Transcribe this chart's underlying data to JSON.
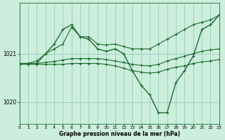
{
  "xlabel": "Graphe pression niveau de la mer (hPa)",
  "background_color": "#cceedd",
  "grid_color": "#99ccbb",
  "line_color": "#1a6b2a",
  "xlim": [
    0,
    23
  ],
  "ylim": [
    1019.55,
    1022.05
  ],
  "yticks": [
    1020,
    1021
  ],
  "xticks": [
    0,
    1,
    2,
    3,
    4,
    5,
    6,
    7,
    8,
    9,
    10,
    11,
    12,
    13,
    14,
    15,
    16,
    17,
    18,
    19,
    20,
    21,
    22,
    23
  ],
  "line_main_x": [
    0,
    1,
    2,
    3,
    4,
    5,
    6,
    7,
    8,
    9,
    10,
    11,
    12,
    13,
    14,
    15,
    16,
    17,
    18,
    19,
    20,
    21,
    22,
    23
  ],
  "line_main_y": [
    1020.8,
    1020.8,
    1020.8,
    1021.0,
    1021.2,
    1021.5,
    1021.6,
    1021.35,
    1021.3,
    1021.1,
    1021.05,
    1021.1,
    1021.0,
    1020.65,
    1020.35,
    1020.15,
    1019.78,
    1019.78,
    1020.4,
    1020.65,
    1020.95,
    1021.5,
    1021.6,
    1021.8
  ],
  "line_top_x": [
    0,
    1,
    2,
    3,
    4,
    5,
    6,
    7,
    8,
    9,
    10,
    11,
    12,
    13,
    14,
    15,
    16,
    17,
    18,
    19,
    20,
    21,
    22,
    23
  ],
  "line_top_y": [
    1020.8,
    1020.8,
    1020.85,
    1021.0,
    1021.1,
    1021.2,
    1021.55,
    1021.35,
    1021.35,
    1021.2,
    1021.18,
    1021.2,
    1021.15,
    1021.1,
    1021.1,
    1021.1,
    1021.2,
    1021.3,
    1021.4,
    1021.5,
    1021.6,
    1021.65,
    1021.7,
    1021.8
  ],
  "line_mid_x": [
    0,
    1,
    2,
    3,
    4,
    5,
    6,
    7,
    8,
    9,
    10,
    11,
    12,
    13,
    14,
    15,
    16,
    17,
    18,
    19,
    20,
    21,
    22,
    23
  ],
  "line_mid_y": [
    1020.8,
    1020.8,
    1020.8,
    1020.82,
    1020.84,
    1020.87,
    1020.9,
    1020.9,
    1020.9,
    1020.9,
    1020.88,
    1020.85,
    1020.82,
    1020.78,
    1020.76,
    1020.75,
    1020.78,
    1020.85,
    1020.9,
    1020.95,
    1021.0,
    1021.05,
    1021.08,
    1021.1
  ],
  "line_low_x": [
    0,
    1,
    2,
    3,
    4,
    5,
    6,
    7,
    8,
    9,
    10,
    11,
    12,
    13,
    14,
    15,
    16,
    17,
    18,
    19,
    20,
    21,
    22,
    23
  ],
  "line_low_y": [
    1020.78,
    1020.78,
    1020.78,
    1020.78,
    1020.78,
    1020.78,
    1020.8,
    1020.8,
    1020.8,
    1020.8,
    1020.78,
    1020.75,
    1020.7,
    1020.65,
    1020.62,
    1020.6,
    1020.62,
    1020.68,
    1020.72,
    1020.75,
    1020.8,
    1020.83,
    1020.85,
    1020.88
  ]
}
